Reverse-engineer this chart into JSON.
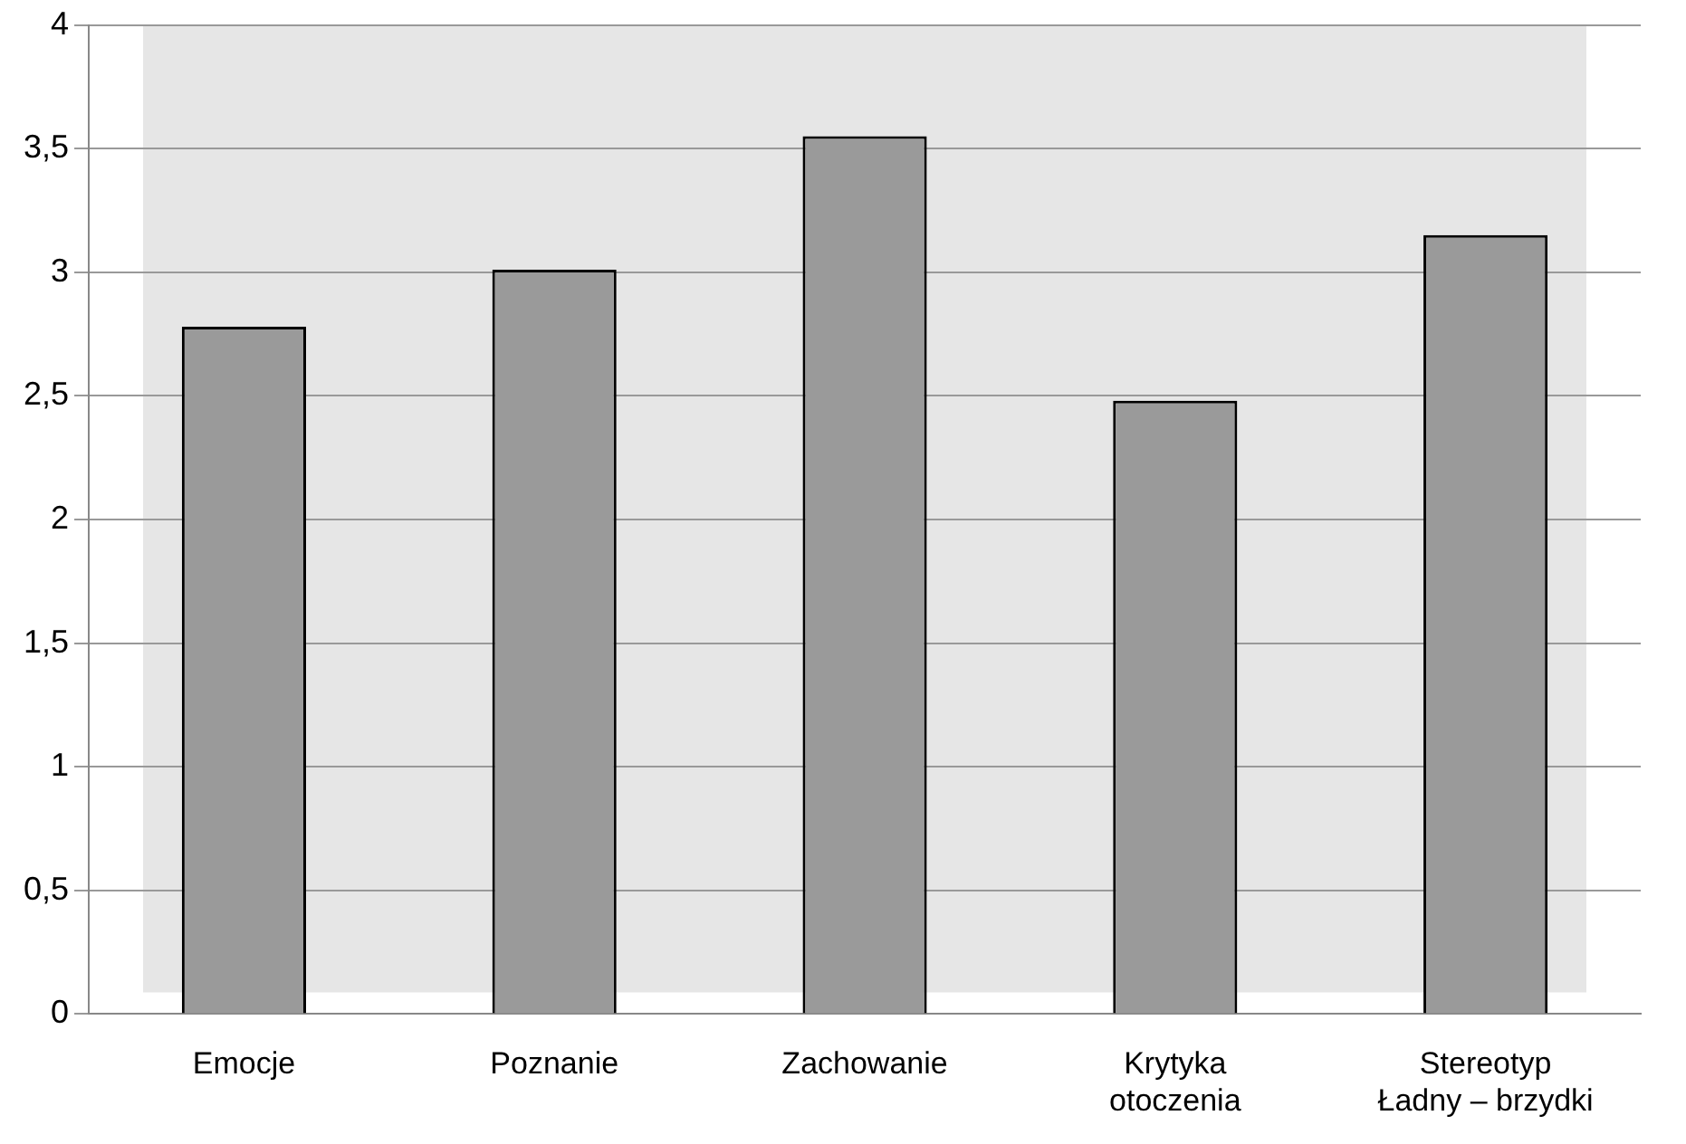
{
  "chart_data": {
    "type": "bar",
    "categories": [
      "Emocje",
      "Poznanie",
      "Zachowanie",
      "Krytyka\notoczenia",
      "Stereotyp\nŁadny – brzydki"
    ],
    "values": [
      2.78,
      3.01,
      3.55,
      2.48,
      3.15
    ],
    "color": "#9a9a9a",
    "ylim": [
      0,
      4
    ],
    "yticks": [
      0,
      {
        "value": 0.5,
        "label": "0,5"
      },
      1,
      {
        "value": 1.5,
        "label": "1,5"
      },
      2,
      {
        "value": 2.5,
        "label": "2,5"
      },
      3,
      {
        "value": 3.5,
        "label": "3,5"
      },
      4
    ],
    "grid": "y",
    "legend": false
  }
}
